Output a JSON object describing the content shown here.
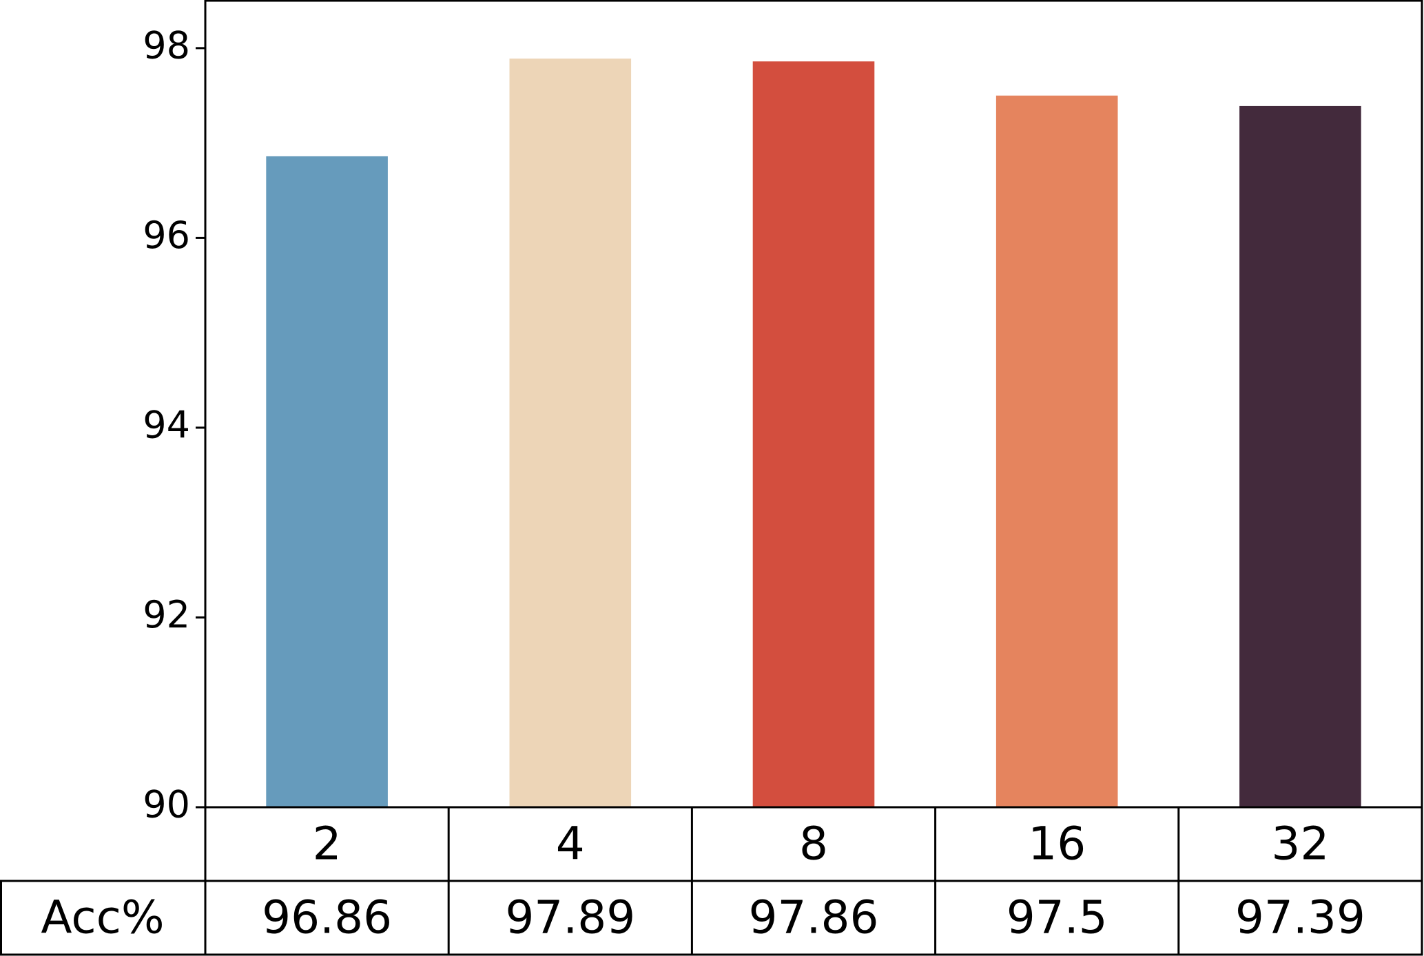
{
  "chart_data": {
    "type": "bar",
    "categories": [
      "2",
      "4",
      "8",
      "16",
      "32"
    ],
    "values": [
      96.86,
      97.89,
      97.86,
      97.5,
      97.39
    ],
    "colors": [
      "#669bbc",
      "#edd5b7",
      "#d34e3e",
      "#e5845e",
      "#432a3c"
    ],
    "row_label": "Acc%",
    "ylim": [
      90,
      98.5
    ],
    "yticks": [
      90,
      92,
      94,
      96,
      98
    ],
    "grid": false
  }
}
